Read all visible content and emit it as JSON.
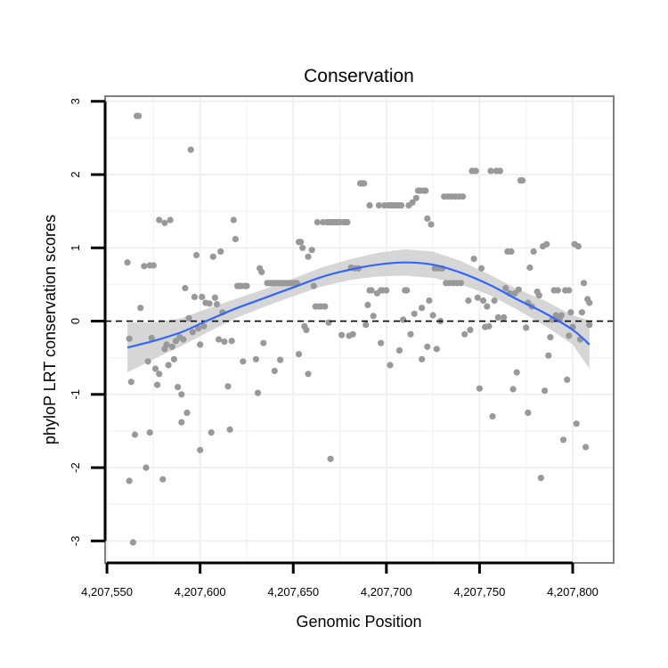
{
  "chart_data": {
    "type": "scatter",
    "title": "Conservation",
    "xlabel": "Genomic Position",
    "ylabel": "phyloP LRT conservation scores",
    "xlim": [
      4207549,
      4207822
    ],
    "ylim": [
      -3.3,
      3.07
    ],
    "x_ticks": [
      {
        "value": 4207550,
        "label": "4,207,550"
      },
      {
        "value": 4207600,
        "label": "4,207,600"
      },
      {
        "value": 4207650,
        "label": "4,207,650"
      },
      {
        "value": 4207700,
        "label": "4,207,700"
      },
      {
        "value": 4207750,
        "label": "4,207,750"
      },
      {
        "value": 4207800,
        "label": "4,207,800"
      }
    ],
    "y_ticks": [
      {
        "value": 3,
        "label": "3"
      },
      {
        "value": 2,
        "label": "2"
      },
      {
        "value": 1,
        "label": "1"
      },
      {
        "value": 0,
        "label": "0"
      },
      {
        "value": -1,
        "label": "-1"
      },
      {
        "value": -2,
        "label": "-2"
      },
      {
        "value": -3,
        "label": "-3"
      }
    ],
    "reference_line": {
      "y": 0,
      "style": "dashed"
    },
    "colors": {
      "points": "#999999",
      "smooth": "#3366ff",
      "ribbon": "#cfcfcf",
      "grid": "#f0f0f0",
      "panel_border": "#7f7f7f",
      "reference": "#000000"
    },
    "points": [
      [
        4207561,
        0.8
      ],
      [
        4207562,
        -0.24
      ],
      [
        4207562,
        -2.18
      ],
      [
        4207563,
        -0.83
      ],
      [
        4207564,
        -3.02
      ],
      [
        4207565,
        -1.55
      ],
      [
        4207566,
        2.8
      ],
      [
        4207567,
        2.8
      ],
      [
        4207568,
        0.18
      ],
      [
        4207570,
        0.75
      ],
      [
        4207571,
        -2.0
      ],
      [
        4207572,
        -0.55
      ],
      [
        4207573,
        0.76
      ],
      [
        4207573,
        -1.52
      ],
      [
        4207574,
        -0.23
      ],
      [
        4207575,
        0.76
      ],
      [
        4207576,
        -0.65
      ],
      [
        4207577,
        -0.87
      ],
      [
        4207578,
        1.38
      ],
      [
        4207578,
        -0.72
      ],
      [
        4207580,
        -2.16
      ],
      [
        4207581,
        -0.38
      ],
      [
        4207581,
        1.34
      ],
      [
        4207582,
        -0.32
      ],
      [
        4207583,
        -0.6
      ],
      [
        4207584,
        1.38
      ],
      [
        4207585,
        -0.35
      ],
      [
        4207586,
        -0.52
      ],
      [
        4207587,
        -0.27
      ],
      [
        4207588,
        -0.9
      ],
      [
        4207589,
        -0.22
      ],
      [
        4207590,
        -1.0
      ],
      [
        4207590,
        -1.38
      ],
      [
        4207591,
        -0.25
      ],
      [
        4207592,
        0.45
      ],
      [
        4207593,
        -1.25
      ],
      [
        4207594,
        0.04
      ],
      [
        4207595,
        2.34
      ],
      [
        4207596,
        -0.15
      ],
      [
        4207597,
        0.33
      ],
      [
        4207598,
        0.9
      ],
      [
        4207599,
        -0.1
      ],
      [
        4207600,
        -0.32
      ],
      [
        4207600,
        -1.76
      ],
      [
        4207601,
        0.33
      ],
      [
        4207602,
        -0.07
      ],
      [
        4207603,
        0.25
      ],
      [
        4207605,
        0.24
      ],
      [
        4207606,
        -1.52
      ],
      [
        4207607,
        0.88
      ],
      [
        4207608,
        0.32
      ],
      [
        4207609,
        0.23
      ],
      [
        4207610,
        -0.25
      ],
      [
        4207611,
        0.95
      ],
      [
        4207612,
        0.12
      ],
      [
        4207613,
        -0.28
      ],
      [
        4207615,
        -0.89
      ],
      [
        4207616,
        -1.48
      ],
      [
        4207617,
        -0.27
      ],
      [
        4207618,
        1.38
      ],
      [
        4207619,
        1.12
      ],
      [
        4207620,
        0.48
      ],
      [
        4207621,
        0.48
      ],
      [
        4207622,
        0.48
      ],
      [
        4207623,
        -0.55
      ],
      [
        4207624,
        0.48
      ],
      [
        4207625,
        0.48
      ],
      [
        4207630,
        -0.52
      ],
      [
        4207631,
        -0.98
      ],
      [
        4207632,
        0.72
      ],
      [
        4207633,
        0.67
      ],
      [
        4207634,
        -0.3
      ],
      [
        4207636,
        0.52
      ],
      [
        4207637,
        0.52
      ],
      [
        4207638,
        0.52
      ],
      [
        4207639,
        0.52
      ],
      [
        4207640,
        0.52
      ],
      [
        4207640,
        -0.68
      ],
      [
        4207641,
        0.52
      ],
      [
        4207642,
        0.52
      ],
      [
        4207643,
        0.52
      ],
      [
        4207643,
        -0.53
      ],
      [
        4207644,
        0.52
      ],
      [
        4207645,
        0.52
      ],
      [
        4207646,
        0.52
      ],
      [
        4207647,
        0.52
      ],
      [
        4207648,
        0.52
      ],
      [
        4207649,
        0.52
      ],
      [
        4207650,
        0.52
      ],
      [
        4207651,
        0.52
      ],
      [
        4207652,
        0.52
      ],
      [
        4207653,
        -0.45
      ],
      [
        4207653,
        1.08
      ],
      [
        4207654,
        1.08
      ],
      [
        4207655,
        1.0
      ],
      [
        4207656,
        -0.07
      ],
      [
        4207657,
        -0.12
      ],
      [
        4207658,
        0.88
      ],
      [
        4207658,
        -0.72
      ],
      [
        4207660,
        0.97
      ],
      [
        4207661,
        0.48
      ],
      [
        4207662,
        0.2
      ],
      [
        4207663,
        1.35
      ],
      [
        4207664,
        0.2
      ],
      [
        4207665,
        0.2
      ],
      [
        4207666,
        1.35
      ],
      [
        4207667,
        0.2
      ],
      [
        4207668,
        1.35
      ],
      [
        4207669,
        1.35
      ],
      [
        4207669,
        -0.02
      ],
      [
        4207670,
        1.35
      ],
      [
        4207670,
        -1.88
      ],
      [
        4207671,
        1.35
      ],
      [
        4207672,
        1.35
      ],
      [
        4207673,
        1.35
      ],
      [
        4207674,
        1.35
      ],
      [
        4207675,
        1.35
      ],
      [
        4207676,
        -0.19
      ],
      [
        4207677,
        1.35
      ],
      [
        4207678,
        1.35
      ],
      [
        4207679,
        1.35
      ],
      [
        4207680,
        -0.2
      ],
      [
        4207681,
        0.73
      ],
      [
        4207682,
        -0.18
      ],
      [
        4207683,
        0.72
      ],
      [
        4207685,
        0.72
      ],
      [
        4207686,
        1.88
      ],
      [
        4207687,
        1.88
      ],
      [
        4207688,
        1.88
      ],
      [
        4207689,
        -0.05
      ],
      [
        4207690,
        0.22
      ],
      [
        4207691,
        0.42
      ],
      [
        4207691,
        1.58
      ],
      [
        4207692,
        0.42
      ],
      [
        4207693,
        0.07
      ],
      [
        4207695,
        0.38
      ],
      [
        4207696,
        1.58
      ],
      [
        4207697,
        0.42
      ],
      [
        4207697,
        -0.3
      ],
      [
        4207698,
        0.42
      ],
      [
        4207699,
        1.58
      ],
      [
        4207700,
        0.42
      ],
      [
        4207701,
        1.58
      ],
      [
        4207702,
        1.58
      ],
      [
        4207702,
        -0.6
      ],
      [
        4207703,
        1.58
      ],
      [
        4207704,
        1.58
      ],
      [
        4207705,
        1.58
      ],
      [
        4207706,
        1.58
      ],
      [
        4207707,
        1.58
      ],
      [
        4207707,
        -0.4
      ],
      [
        4207708,
        1.58
      ],
      [
        4207709,
        0.02
      ],
      [
        4207710,
        0.42
      ],
      [
        4207711,
        0.42
      ],
      [
        4207712,
        1.58
      ],
      [
        4207713,
        -0.18
      ],
      [
        4207714,
        1.62
      ],
      [
        4207715,
        0.1
      ],
      [
        4207716,
        1.68
      ],
      [
        4207717,
        1.78
      ],
      [
        4207718,
        1.78
      ],
      [
        4207719,
        0.18
      ],
      [
        4207719,
        -0.52
      ],
      [
        4207720,
        1.78
      ],
      [
        4207721,
        1.78
      ],
      [
        4207722,
        1.4
      ],
      [
        4207722,
        -0.35
      ],
      [
        4207723,
        0.28
      ],
      [
        4207724,
        1.32
      ],
      [
        4207725,
        0.08
      ],
      [
        4207726,
        0.72
      ],
      [
        4207727,
        -0.38
      ],
      [
        4207728,
        0.72
      ],
      [
        4207729,
        0.0
      ],
      [
        4207730,
        0.72
      ],
      [
        4207731,
        1.7
      ],
      [
        4207732,
        0.52
      ],
      [
        4207733,
        1.7
      ],
      [
        4207734,
        0.52
      ],
      [
        4207735,
        1.7
      ],
      [
        4207736,
        0.52
      ],
      [
        4207737,
        1.7
      ],
      [
        4207738,
        0.52
      ],
      [
        4207739,
        1.7
      ],
      [
        4207740,
        0.52
      ],
      [
        4207741,
        1.7
      ],
      [
        4207742,
        -0.18
      ],
      [
        4207744,
        0.28
      ],
      [
        4207745,
        -0.12
      ],
      [
        4207746,
        2.05
      ],
      [
        4207747,
        0.85
      ],
      [
        4207748,
        2.05
      ],
      [
        4207749,
        0.32
      ],
      [
        4207750,
        -0.92
      ],
      [
        4207751,
        0.72
      ],
      [
        4207752,
        0.28
      ],
      [
        4207753,
        -0.08
      ],
      [
        4207754,
        0.2
      ],
      [
        4207755,
        -0.07
      ],
      [
        4207756,
        2.05
      ],
      [
        4207757,
        -1.3
      ],
      [
        4207758,
        0.28
      ],
      [
        4207759,
        2.05
      ],
      [
        4207760,
        0.05
      ],
      [
        4207761,
        2.05
      ],
      [
        4207763,
        0.05
      ],
      [
        4207764,
        0.45
      ],
      [
        4207765,
        0.95
      ],
      [
        4207766,
        0.38
      ],
      [
        4207767,
        0.95
      ],
      [
        4207768,
        -0.93
      ],
      [
        4207769,
        0.38
      ],
      [
        4207770,
        -0.7
      ],
      [
        4207771,
        0.43
      ],
      [
        4207772,
        1.92
      ],
      [
        4207773,
        1.92
      ],
      [
        4207775,
        -0.09
      ],
      [
        4207776,
        0.25
      ],
      [
        4207776,
        -1.25
      ],
      [
        4207777,
        0.73
      ],
      [
        4207778,
        0.2
      ],
      [
        4207779,
        0.95
      ],
      [
        4207781,
        0.4
      ],
      [
        4207782,
        0.35
      ],
      [
        4207783,
        -2.14
      ],
      [
        4207784,
        1.02
      ],
      [
        4207785,
        -0.95
      ],
      [
        4207786,
        1.05
      ],
      [
        4207787,
        -0.47
      ],
      [
        4207788,
        -0.22
      ],
      [
        4207789,
        0.02
      ],
      [
        4207790,
        0.42
      ],
      [
        4207791,
        0.08
      ],
      [
        4207792,
        0.42
      ],
      [
        4207793,
        0.02
      ],
      [
        4207794,
        0.08
      ],
      [
        4207795,
        -1.62
      ],
      [
        4207796,
        0.42
      ],
      [
        4207797,
        -0.8
      ],
      [
        4207798,
        0.42
      ],
      [
        4207798,
        -0.2
      ],
      [
        4207799,
        0.12
      ],
      [
        4207800,
        -0.08
      ],
      [
        4207801,
        1.05
      ],
      [
        4207802,
        -1.4
      ],
      [
        4207803,
        1.02
      ],
      [
        4207804,
        -0.25
      ],
      [
        4207805,
        0.12
      ],
      [
        4207806,
        0.52
      ],
      [
        4207807,
        -1.72
      ],
      [
        4207808,
        0.3
      ],
      [
        4207809,
        0.25
      ],
      [
        4207809,
        -0.05
      ]
    ],
    "smooth": {
      "x": [
        4207561,
        4207575,
        4207590,
        4207605,
        4207620,
        4207635,
        4207650,
        4207665,
        4207680,
        4207695,
        4207710,
        4207725,
        4207740,
        4207755,
        4207770,
        4207785,
        4207800,
        4207809
      ],
      "y": [
        -0.36,
        -0.27,
        -0.15,
        0.02,
        0.18,
        0.32,
        0.46,
        0.6,
        0.7,
        0.77,
        0.8,
        0.77,
        0.66,
        0.5,
        0.3,
        0.11,
        -0.12,
        -0.32
      ],
      "lower": [
        -0.7,
        -0.52,
        -0.34,
        -0.14,
        0.05,
        0.2,
        0.34,
        0.47,
        0.56,
        0.61,
        0.62,
        0.59,
        0.5,
        0.36,
        0.16,
        -0.06,
        -0.32,
        -0.65
      ],
      "upper": [
        -0.02,
        -0.02,
        0.04,
        0.18,
        0.31,
        0.44,
        0.58,
        0.73,
        0.84,
        0.93,
        0.98,
        0.95,
        0.82,
        0.64,
        0.44,
        0.28,
        0.08,
        0.01
      ]
    }
  }
}
